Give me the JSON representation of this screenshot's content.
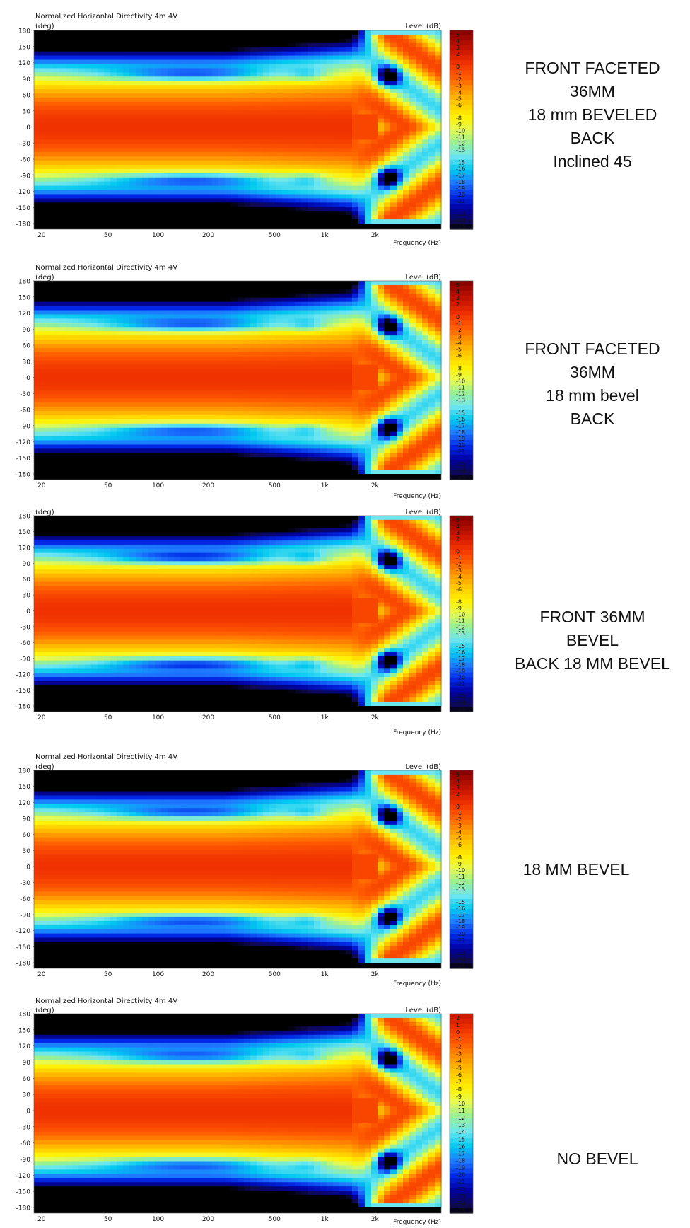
{
  "chart_data": [
    {
      "type": "heatmap",
      "title": "Normalized Horizontal Directivity 4m 4V",
      "ylabel": "(deg)",
      "xlabel": "Frequency  (Hz)",
      "colorbar_label": "Level  (dB)",
      "x_scale": "log",
      "xlim": [
        18,
        5000
      ],
      "ylim": [
        -180,
        180
      ],
      "x_ticks": [
        "20",
        "50",
        "100",
        "200",
        "500",
        "1k",
        "2k"
      ],
      "y_ticks": [
        "180",
        "150",
        "120",
        "90",
        "60",
        "30",
        "0",
        "-30",
        "-60",
        "-90",
        "-120",
        "-150",
        "-180"
      ],
      "colorbar_ticks": [
        "5",
        "4",
        "3",
        "2",
        "0",
        "-1",
        "-2",
        "-3",
        "-4",
        "-5",
        "-6",
        "-8",
        "-9",
        "-10",
        "-11",
        "-12",
        "-13",
        "-15",
        "-16",
        "-17",
        "-18",
        "-19",
        "-20",
        "-21",
        "-23",
        "-24",
        "-25"
      ],
      "colorbar_range": [
        -25,
        5
      ],
      "null_angle_deg": 98,
      "null_depth_db": -16,
      "note": [
        "FRONT FACETED",
        "36MM",
        "18 mm BEVELED",
        "BACK",
        "Inclined 45"
      ]
    },
    {
      "type": "heatmap",
      "title": "Normalized Horizontal Directivity 4m 4V",
      "ylabel": "(deg)",
      "xlabel": "Frequency  (Hz)",
      "colorbar_label": "Level  (dB)",
      "x_scale": "log",
      "xlim": [
        18,
        5000
      ],
      "ylim": [
        -180,
        180
      ],
      "x_ticks": [
        "20",
        "50",
        "100",
        "200",
        "500",
        "1k",
        "2k"
      ],
      "y_ticks": [
        "180",
        "150",
        "120",
        "90",
        "60",
        "30",
        "0",
        "-30",
        "-60",
        "-90",
        "-120",
        "-150",
        "-180"
      ],
      "colorbar_ticks": [
        "5",
        "4",
        "3",
        "2",
        "0",
        "-1",
        "-2",
        "-3",
        "-4",
        "-5",
        "-6",
        "-8",
        "-9",
        "-10",
        "-11",
        "-12",
        "-13",
        "-15",
        "-16",
        "-17",
        "-18",
        "-19",
        "-20",
        "-21",
        "-23",
        "-24",
        "-25"
      ],
      "colorbar_range": [
        -25,
        5
      ],
      "null_angle_deg": 98,
      "null_depth_db": -16,
      "note": [
        "FRONT FACETED",
        "36MM",
        "18 mm bevel",
        "BACK"
      ]
    },
    {
      "type": "heatmap",
      "title": "",
      "ylabel": "(deg)",
      "xlabel": "Frequency  (Hz)",
      "colorbar_label": "Level  (dB)",
      "x_scale": "log",
      "xlim": [
        18,
        5000
      ],
      "ylim": [
        -180,
        180
      ],
      "x_ticks": [
        "20",
        "50",
        "100",
        "200",
        "500",
        "1k",
        "2k"
      ],
      "y_ticks": [
        "180",
        "150",
        "120",
        "90",
        "60",
        "30",
        "0",
        "-30",
        "-60",
        "-90",
        "-120",
        "-150",
        "-180"
      ],
      "colorbar_ticks": [
        "5",
        "4",
        "3",
        "2",
        "0",
        "-1",
        "-2",
        "-3",
        "-4",
        "-5",
        "-6",
        "-8",
        "-9",
        "-10",
        "-11",
        "-12",
        "-13",
        "-15",
        "-16",
        "-17",
        "-18",
        "-19",
        "-20",
        "-21",
        "-23",
        "-24",
        "-25"
      ],
      "colorbar_range": [
        -25,
        5
      ],
      "null_angle_deg": 100,
      "null_depth_db": -17,
      "note": [
        "FRONT 36MM",
        "BEVEL",
        "BACK 18 MM BEVEL"
      ]
    },
    {
      "type": "heatmap",
      "title": "Normalized Horizontal Directivity 4m 4V",
      "ylabel": "(deg)",
      "xlabel": "Frequency  (Hz)",
      "colorbar_label": "Level  (dB)",
      "x_scale": "log",
      "xlim": [
        18,
        5000
      ],
      "ylim": [
        -180,
        180
      ],
      "x_ticks": [
        "20",
        "50",
        "100",
        "200",
        "500",
        "1k",
        "2k"
      ],
      "y_ticks": [
        "180",
        "150",
        "120",
        "90",
        "60",
        "30",
        "0",
        "-30",
        "-60",
        "-90",
        "-120",
        "-150",
        "-180"
      ],
      "colorbar_ticks": [
        "5",
        "4",
        "3",
        "2",
        "0",
        "-1",
        "-2",
        "-3",
        "-4",
        "-5",
        "-6",
        "-8",
        "-9",
        "-10",
        "-11",
        "-12",
        "-13",
        "-15",
        "-16",
        "-17",
        "-18",
        "-19",
        "-20",
        "-21",
        "-23",
        "-24",
        "-25"
      ],
      "colorbar_range": [
        -25,
        5
      ],
      "null_angle_deg": 100,
      "null_depth_db": -15,
      "note": [
        "18 MM BEVEL"
      ]
    },
    {
      "type": "heatmap",
      "title": "Normalized Horizontal Directivity 4m 4V",
      "ylabel": "(deg)",
      "xlabel": "Frequency  (Hz)",
      "colorbar_label": "Level  (dB)",
      "x_scale": "log",
      "xlim": [
        18,
        5000
      ],
      "ylim": [
        -180,
        180
      ],
      "x_ticks": [
        "20",
        "50",
        "100",
        "200",
        "500",
        "1k",
        "2k"
      ],
      "y_ticks": [
        "180",
        "150",
        "120",
        "90",
        "60",
        "30",
        "0",
        "-30",
        "-60",
        "-90",
        "-120",
        "-150",
        "-180"
      ],
      "colorbar_ticks": [
        "2",
        "1",
        "0",
        "-1",
        "-2",
        "-3",
        "-4",
        "-5",
        "-6",
        "-7",
        "-8",
        "-9",
        "-10",
        "-11",
        "-12",
        "-13",
        "-14",
        "-15",
        "-16",
        "-17",
        "-18",
        "-19",
        "-20",
        "-21",
        "-22",
        "-23",
        "-24",
        "-25"
      ],
      "colorbar_range": [
        -25,
        2
      ],
      "null_angle_deg": 100,
      "null_depth_db": -14,
      "note": [
        "NO BEVEL"
      ]
    }
  ]
}
